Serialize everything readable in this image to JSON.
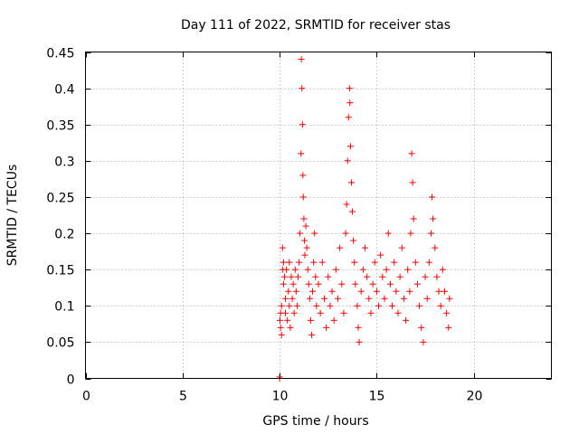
{
  "chart_data": {
    "type": "scatter",
    "title": "Day 111 of 2022, SRMTID for receiver stas",
    "xlabel": "GPS time / hours",
    "ylabel": "SRMTID / TECUs",
    "xlim": [
      0,
      24
    ],
    "ylim": [
      0,
      0.45
    ],
    "xticks": [
      0,
      5,
      10,
      15,
      20
    ],
    "xtick_labels": [
      "0",
      "5",
      "10",
      "15",
      "20"
    ],
    "yticks": [
      0,
      0.05,
      0.1,
      0.15,
      0.2,
      0.25,
      0.3,
      0.35,
      0.4,
      0.45
    ],
    "ytick_labels": [
      "0",
      "0.05",
      "0.1",
      "0.15",
      "0.2",
      "0.25",
      "0.3",
      "0.35",
      "0.4",
      "0.45"
    ],
    "grid": true,
    "marker": "+",
    "marker_color": "#ff0000",
    "series": [
      {
        "name": "SRMTID",
        "x": [
          10.0,
          10.0,
          10.02,
          10.05,
          10.05,
          10.1,
          10.1,
          10.15,
          10.15,
          10.2,
          10.2,
          10.25,
          10.3,
          10.3,
          10.35,
          10.4,
          10.45,
          10.5,
          10.5,
          10.55,
          10.6,
          10.65,
          10.7,
          10.75,
          10.8,
          10.85,
          10.9,
          10.95,
          11.0,
          11.05,
          11.1,
          11.12,
          11.15,
          11.18,
          11.2,
          11.22,
          11.25,
          11.28,
          11.3,
          11.35,
          11.4,
          11.45,
          11.5,
          11.55,
          11.6,
          11.65,
          11.7,
          11.75,
          11.8,
          11.85,
          11.9,
          12.0,
          12.1,
          12.2,
          12.3,
          12.4,
          12.5,
          12.6,
          12.7,
          12.8,
          12.9,
          13.0,
          13.1,
          13.2,
          13.3,
          13.4,
          13.45,
          13.5,
          13.55,
          13.6,
          13.62,
          13.65,
          13.7,
          13.75,
          13.8,
          13.85,
          13.9,
          14.0,
          14.05,
          14.1,
          14.2,
          14.3,
          14.4,
          14.5,
          14.6,
          14.7,
          14.8,
          14.9,
          15.0,
          15.1,
          15.2,
          15.3,
          15.4,
          15.5,
          15.6,
          15.7,
          15.8,
          15.9,
          16.0,
          16.1,
          16.2,
          16.3,
          16.4,
          16.5,
          16.6,
          16.7,
          16.75,
          16.8,
          16.85,
          16.9,
          17.0,
          17.1,
          17.2,
          17.3,
          17.4,
          17.5,
          17.6,
          17.7,
          17.8,
          17.85,
          17.9,
          18.0,
          18.1,
          18.2,
          18.3,
          18.4,
          18.5,
          18.6,
          18.7,
          18.75
        ],
        "y": [
          0.0,
          0.002,
          0.08,
          0.07,
          0.09,
          0.06,
          0.1,
          0.15,
          0.18,
          0.13,
          0.16,
          0.14,
          0.11,
          0.09,
          0.15,
          0.08,
          0.12,
          0.1,
          0.16,
          0.07,
          0.14,
          0.11,
          0.13,
          0.09,
          0.15,
          0.12,
          0.1,
          0.14,
          0.16,
          0.2,
          0.31,
          0.44,
          0.4,
          0.35,
          0.28,
          0.25,
          0.22,
          0.19,
          0.17,
          0.21,
          0.18,
          0.15,
          0.13,
          0.11,
          0.08,
          0.06,
          0.12,
          0.16,
          0.2,
          0.14,
          0.1,
          0.13,
          0.09,
          0.16,
          0.11,
          0.07,
          0.14,
          0.1,
          0.12,
          0.08,
          0.15,
          0.11,
          0.18,
          0.13,
          0.09,
          0.2,
          0.24,
          0.3,
          0.36,
          0.4,
          0.38,
          0.32,
          0.27,
          0.23,
          0.19,
          0.16,
          0.13,
          0.1,
          0.07,
          0.05,
          0.12,
          0.15,
          0.18,
          0.14,
          0.11,
          0.09,
          0.13,
          0.16,
          0.12,
          0.1,
          0.17,
          0.14,
          0.11,
          0.15,
          0.2,
          0.13,
          0.1,
          0.16,
          0.12,
          0.09,
          0.14,
          0.18,
          0.11,
          0.08,
          0.15,
          0.12,
          0.2,
          0.31,
          0.27,
          0.22,
          0.16,
          0.13,
          0.1,
          0.07,
          0.05,
          0.14,
          0.11,
          0.16,
          0.2,
          0.25,
          0.22,
          0.18,
          0.14,
          0.12,
          0.1,
          0.15,
          0.12,
          0.09,
          0.07,
          0.11
        ]
      }
    ]
  }
}
